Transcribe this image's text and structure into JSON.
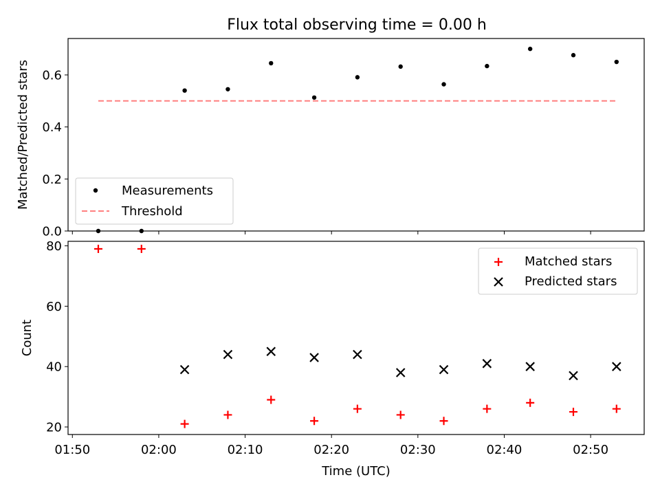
{
  "figure": {
    "title": "Flux total observing time = 0.00 h"
  },
  "chart_data": [
    {
      "type": "scatter",
      "title": "Flux total observing time = 0.00 h",
      "xlabel": "",
      "ylabel": "Matched/Predicted stars",
      "ylim": [
        0,
        0.74
      ],
      "yticks": [
        0.0,
        0.2,
        0.4,
        0.6
      ],
      "ytick_labels": [
        "0.0",
        "0.2",
        "0.4",
        "0.6"
      ],
      "grid": false,
      "legend": "lower-left",
      "series": [
        {
          "name": "Measurements",
          "kind": "points",
          "marker": "dot",
          "color": "#000000",
          "x": [
            "01:53",
            "01:58",
            "02:03",
            "02:08",
            "02:13",
            "02:18",
            "02:23",
            "02:28",
            "02:33",
            "02:38",
            "02:43",
            "02:48",
            "02:53"
          ],
          "values": [
            0.0,
            0.0,
            0.54,
            0.545,
            0.645,
            0.513,
            0.591,
            0.632,
            0.564,
            0.634,
            0.7,
            0.676,
            0.65
          ]
        },
        {
          "name": "Threshold",
          "kind": "line",
          "style": "dashed",
          "color": "#ff7f7f",
          "x": [
            "01:53",
            "02:53"
          ],
          "values": [
            0.5,
            0.5
          ]
        }
      ]
    },
    {
      "type": "scatter",
      "xlabel": "Time (UTC)",
      "ylabel": "Count",
      "xlim": [
        "01:49.5",
        "02:56.2"
      ],
      "xticks": [
        "01:50",
        "02:00",
        "02:10",
        "02:20",
        "02:30",
        "02:40",
        "02:50"
      ],
      "ylim": [
        17.5,
        81.5
      ],
      "yticks": [
        20,
        40,
        60,
        80
      ],
      "ytick_labels": [
        "20",
        "40",
        "60",
        "80"
      ],
      "grid": false,
      "legend": "upper-right",
      "series": [
        {
          "name": "Matched stars",
          "kind": "points",
          "marker": "plus",
          "color": "#ff0000",
          "x": [
            "01:53",
            "01:58",
            "02:03",
            "02:08",
            "02:13",
            "02:18",
            "02:23",
            "02:28",
            "02:33",
            "02:38",
            "02:43",
            "02:48",
            "02:53"
          ],
          "values": [
            79,
            79,
            21,
            24,
            29,
            22,
            26,
            24,
            22,
            26,
            28,
            25,
            26
          ]
        },
        {
          "name": "Predicted stars",
          "kind": "points",
          "marker": "x",
          "color": "#000000",
          "x": [
            "02:03",
            "02:08",
            "02:13",
            "02:18",
            "02:23",
            "02:28",
            "02:33",
            "02:38",
            "02:43",
            "02:48",
            "02:53"
          ],
          "values": [
            39,
            44,
            45,
            43,
            44,
            38,
            39,
            41,
            40,
            37,
            40
          ]
        }
      ]
    }
  ]
}
